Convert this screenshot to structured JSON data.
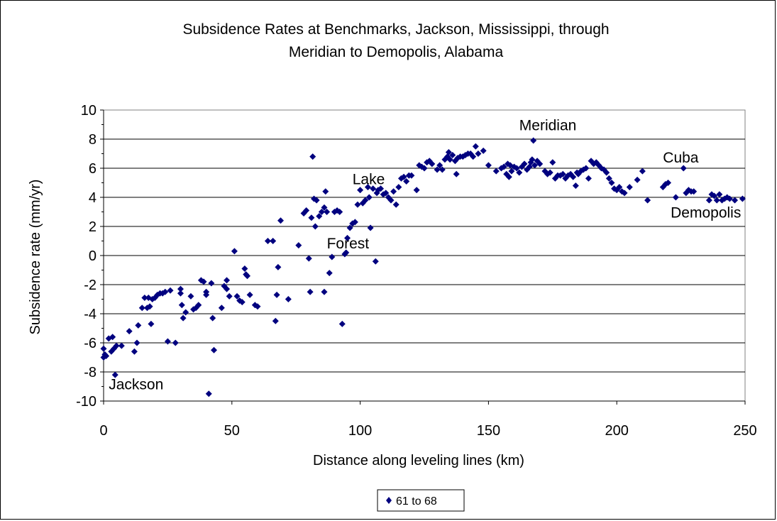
{
  "chart_data": {
    "type": "scatter",
    "title_lines": [
      "Subsidence Rates at Benchmarks, Jackson, Mississippi, through",
      "Meridian to Demopolis, Alabama"
    ],
    "xlabel": "Distance along leveling lines (km)",
    "ylabel": "Subsidence rate (mm/yr)",
    "xlim": [
      0,
      250
    ],
    "ylim": [
      -10,
      10
    ],
    "xticks": [
      0,
      50,
      100,
      150,
      200,
      250
    ],
    "yticks": [
      -10,
      -8,
      -6,
      -4,
      -2,
      0,
      2,
      4,
      6,
      8,
      10
    ],
    "grid": "horizontal",
    "legend_position": "bottom",
    "marker_color": "#00007f",
    "annotations": [
      {
        "text": "Jackson",
        "x": 2,
        "y": -9.2
      },
      {
        "text": "Forest",
        "x": 87,
        "y": 0.5
      },
      {
        "text": "Lake",
        "x": 97,
        "y": 4.9
      },
      {
        "text": "Meridian",
        "x": 162,
        "y": 8.6
      },
      {
        "text": "Cuba",
        "x": 218,
        "y": 6.4
      },
      {
        "text": "Demopolis",
        "x": 221,
        "y": 2.6
      }
    ],
    "series": [
      {
        "name": "61 to 68",
        "points": [
          [
            0,
            -6.4
          ],
          [
            0,
            -7.0
          ],
          [
            0.5,
            -6.8
          ],
          [
            1,
            -6.9
          ],
          [
            2,
            -5.7
          ],
          [
            3,
            -6.6
          ],
          [
            3.5,
            -5.6
          ],
          [
            4,
            -6.4
          ],
          [
            4.5,
            -8.2
          ],
          [
            5,
            -6.2
          ],
          [
            7,
            -6.2
          ],
          [
            10,
            -5.2
          ],
          [
            12,
            -6.6
          ],
          [
            13,
            -6.0
          ],
          [
            13.5,
            -4.8
          ],
          [
            15,
            -3.6
          ],
          [
            16,
            -2.9
          ],
          [
            17,
            -3.6
          ],
          [
            17.5,
            -2.9
          ],
          [
            18,
            -3.5
          ],
          [
            18.5,
            -4.7
          ],
          [
            19,
            -3.0
          ],
          [
            20,
            -2.9
          ],
          [
            21,
            -2.7
          ],
          [
            22,
            -2.6
          ],
          [
            23,
            -2.6
          ],
          [
            24,
            -2.5
          ],
          [
            25,
            -5.9
          ],
          [
            26,
            -2.4
          ],
          [
            28,
            -6.0
          ],
          [
            30,
            -2.3
          ],
          [
            30,
            -2.6
          ],
          [
            30.5,
            -3.4
          ],
          [
            31,
            -4.3
          ],
          [
            32,
            -3.9
          ],
          [
            34,
            -2.8
          ],
          [
            35,
            -3.7
          ],
          [
            36,
            -3.6
          ],
          [
            37,
            -3.4
          ],
          [
            38,
            -1.7
          ],
          [
            39,
            -1.8
          ],
          [
            40,
            -2.5
          ],
          [
            40,
            -2.7
          ],
          [
            41,
            -9.5
          ],
          [
            42,
            -1.9
          ],
          [
            42.5,
            -4.3
          ],
          [
            43,
            -6.5
          ],
          [
            46,
            -3.6
          ],
          [
            47,
            -2.1
          ],
          [
            48,
            -1.7
          ],
          [
            48,
            -2.3
          ],
          [
            49,
            -2.8
          ],
          [
            51,
            0.3
          ],
          [
            52,
            -2.8
          ],
          [
            53,
            -3.1
          ],
          [
            54,
            -3.2
          ],
          [
            55,
            -0.9
          ],
          [
            55.5,
            -1.3
          ],
          [
            56,
            -1.4
          ],
          [
            57,
            -2.7
          ],
          [
            59,
            -3.4
          ],
          [
            60,
            -3.5
          ],
          [
            64,
            1.0
          ],
          [
            66,
            1.0
          ],
          [
            67,
            -4.5
          ],
          [
            67.5,
            -2.7
          ],
          [
            68,
            -0.8
          ],
          [
            69,
            2.4
          ],
          [
            72,
            -3.0
          ],
          [
            76,
            0.7
          ],
          [
            78,
            2.9
          ],
          [
            79,
            3.1
          ],
          [
            80,
            -0.2
          ],
          [
            80.5,
            -2.5
          ],
          [
            81,
            2.6
          ],
          [
            81.5,
            6.8
          ],
          [
            82,
            3.9
          ],
          [
            82.5,
            2.0
          ],
          [
            83,
            3.8
          ],
          [
            84,
            2.7
          ],
          [
            85,
            3.0
          ],
          [
            86,
            -2.5
          ],
          [
            86,
            3.3
          ],
          [
            86.5,
            4.4
          ],
          [
            87,
            3.0
          ],
          [
            88,
            -1.2
          ],
          [
            89,
            -0.1
          ],
          [
            90,
            3.0
          ],
          [
            91,
            3.1
          ],
          [
            92,
            3.0
          ],
          [
            93,
            -4.7
          ],
          [
            94,
            0.1
          ],
          [
            94.5,
            0.2
          ],
          [
            95,
            1.2
          ],
          [
            96,
            1.9
          ],
          [
            97,
            2.2
          ],
          [
            98,
            2.3
          ],
          [
            99,
            3.5
          ],
          [
            100,
            4.5
          ],
          [
            101,
            3.6
          ],
          [
            102,
            3.8
          ],
          [
            103,
            4.7
          ],
          [
            103.5,
            4.0
          ],
          [
            104,
            1.9
          ],
          [
            105,
            4.6
          ],
          [
            106,
            -0.4
          ],
          [
            106.5,
            4.3
          ],
          [
            107,
            4.5
          ],
          [
            108,
            4.6
          ],
          [
            109,
            4.2
          ],
          [
            110,
            4.3
          ],
          [
            111,
            4.0
          ],
          [
            112,
            3.8
          ],
          [
            113,
            4.4
          ],
          [
            114,
            3.5
          ],
          [
            115,
            4.7
          ],
          [
            116,
            5.3
          ],
          [
            117,
            5.4
          ],
          [
            118,
            5.1
          ],
          [
            119,
            5.5
          ],
          [
            120,
            5.5
          ],
          [
            122,
            4.5
          ],
          [
            123,
            6.2
          ],
          [
            124,
            6.1
          ],
          [
            125,
            6.0
          ],
          [
            126,
            6.4
          ],
          [
            127,
            6.5
          ],
          [
            128,
            6.3
          ],
          [
            130,
            5.9
          ],
          [
            131,
            6.2
          ],
          [
            132,
            5.9
          ],
          [
            133,
            6.6
          ],
          [
            134,
            6.8
          ],
          [
            134.5,
            7.1
          ],
          [
            135,
            6.6
          ],
          [
            136,
            6.9
          ],
          [
            137,
            6.5
          ],
          [
            137.5,
            5.6
          ],
          [
            138,
            6.7
          ],
          [
            139,
            6.8
          ],
          [
            140,
            6.8
          ],
          [
            141,
            6.9
          ],
          [
            142,
            7.0
          ],
          [
            143,
            7.0
          ],
          [
            144,
            6.8
          ],
          [
            145,
            7.5
          ],
          [
            146,
            7.0
          ],
          [
            148,
            7.2
          ],
          [
            150,
            6.2
          ],
          [
            153,
            5.8
          ],
          [
            155,
            6.0
          ],
          [
            156,
            6.1
          ],
          [
            157,
            5.6
          ],
          [
            157.5,
            6.3
          ],
          [
            158,
            5.4
          ],
          [
            158.5,
            6.2
          ],
          [
            159,
            5.8
          ],
          [
            160,
            6.1
          ],
          [
            161,
            6.0
          ],
          [
            162,
            5.7
          ],
          [
            163,
            6.1
          ],
          [
            164,
            6.3
          ],
          [
            165,
            5.9
          ],
          [
            166,
            6.1
          ],
          [
            166.5,
            6.4
          ],
          [
            167,
            6.6
          ],
          [
            167.5,
            7.9
          ],
          [
            168,
            6.2
          ],
          [
            169,
            6.5
          ],
          [
            170,
            6.3
          ],
          [
            172,
            5.8
          ],
          [
            173,
            5.6
          ],
          [
            174,
            5.7
          ],
          [
            175,
            6.4
          ],
          [
            176,
            5.3
          ],
          [
            177,
            5.5
          ],
          [
            178,
            5.5
          ],
          [
            179,
            5.6
          ],
          [
            180,
            5.3
          ],
          [
            181,
            5.5
          ],
          [
            182,
            5.6
          ],
          [
            183,
            5.4
          ],
          [
            184,
            4.8
          ],
          [
            184.5,
            5.7
          ],
          [
            185,
            5.6
          ],
          [
            186,
            5.8
          ],
          [
            187,
            5.9
          ],
          [
            188,
            6.0
          ],
          [
            189,
            5.3
          ],
          [
            190,
            6.5
          ],
          [
            191,
            6.3
          ],
          [
            192,
            6.4
          ],
          [
            193,
            6.2
          ],
          [
            194,
            6.0
          ],
          [
            195,
            5.9
          ],
          [
            196,
            5.7
          ],
          [
            197,
            5.3
          ],
          [
            198,
            5.0
          ],
          [
            199,
            4.6
          ],
          [
            200,
            4.5
          ],
          [
            201,
            4.7
          ],
          [
            202,
            4.4
          ],
          [
            203,
            4.3
          ],
          [
            205,
            4.7
          ],
          [
            208,
            5.2
          ],
          [
            210,
            5.8
          ],
          [
            212,
            3.8
          ],
          [
            218,
            4.7
          ],
          [
            219,
            4.9
          ],
          [
            220,
            5.0
          ],
          [
            223,
            4.0
          ],
          [
            226,
            6.0
          ],
          [
            227,
            4.3
          ],
          [
            228,
            4.5
          ],
          [
            229,
            4.4
          ],
          [
            230,
            4.4
          ],
          [
            236,
            3.8
          ],
          [
            237,
            4.2
          ],
          [
            238,
            4.1
          ],
          [
            239,
            3.8
          ],
          [
            240,
            4.2
          ],
          [
            241,
            3.8
          ],
          [
            242,
            3.9
          ],
          [
            243,
            4.0
          ],
          [
            244,
            3.9
          ],
          [
            246,
            3.8
          ],
          [
            249,
            3.9
          ]
        ]
      }
    ]
  }
}
